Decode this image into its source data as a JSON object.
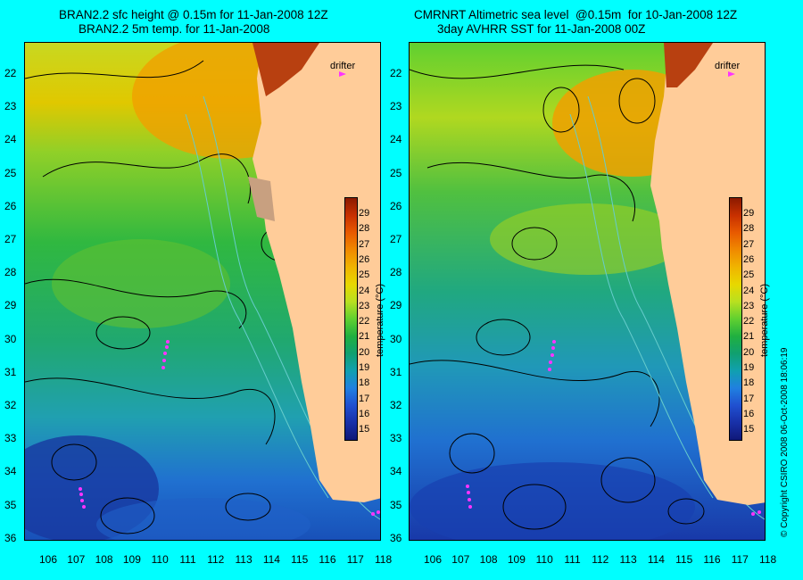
{
  "left_panel": {
    "title_line1": "BRAN2.2 sfc height @ 0.15m for 11-Jan-2008 12Z",
    "title_line2": "BRAN2.2 5m temp. for 11-Jan-2008",
    "drifter_label": "drifter"
  },
  "right_panel": {
    "title_line1": "CMRNRT Altimetric sea level  @0.15m  for 10-Jan-2008 12Z",
    "title_line2": "3day AVHRR SST for 11-Jan-2008 00Z",
    "drifter_label": "drifter"
  },
  "latitude_ticks": [
    "22",
    "23",
    "24",
    "25",
    "26",
    "27",
    "28",
    "29",
    "30",
    "31",
    "32",
    "33",
    "34",
    "35",
    "36"
  ],
  "longitude_ticks": [
    "106",
    "107",
    "108",
    "109",
    "110",
    "111",
    "112",
    "113",
    "114",
    "115",
    "116",
    "117",
    "118"
  ],
  "colorbar": {
    "title": "temperature (°C)",
    "ticks": [
      "29",
      "28",
      "27",
      "26",
      "25",
      "24",
      "23",
      "22",
      "21",
      "20",
      "19",
      "18",
      "17",
      "16",
      "15"
    ],
    "colors": [
      "#8b1a00",
      "#c83000",
      "#e85a00",
      "#f08a00",
      "#f0b400",
      "#e8d800",
      "#b8e020",
      "#60d030",
      "#20b040",
      "#10a070",
      "#10a0b0",
      "#2080e0",
      "#2050d0",
      "#1830a8",
      "#101878"
    ]
  },
  "copyright": "© Copyright CSIRO 2008    06-Oct-2008 18:06:19",
  "colors": {
    "background": "#00ffff",
    "land": "#ffcc99",
    "drifter": "#ff33ff"
  }
}
